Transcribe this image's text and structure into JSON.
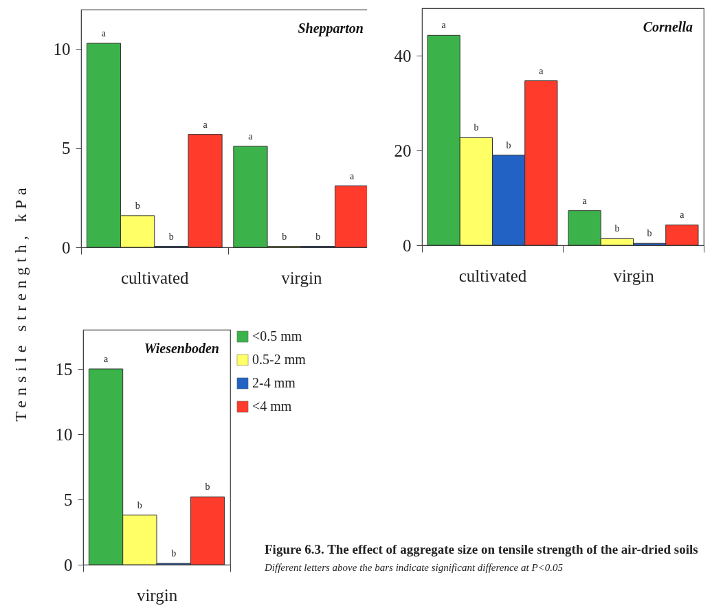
{
  "chart_data": [
    {
      "type": "bar",
      "title": "Shepparton",
      "ylabel": "Tensile strength, kPa",
      "categories": [
        "cultivated",
        "virgin"
      ],
      "ylim": [
        0,
        12
      ],
      "yticks": [
        0,
        5,
        10
      ],
      "series": [
        {
          "color": "#3bb34a",
          "values": [
            10.3,
            5.1
          ],
          "value_labels": [
            "a",
            "a"
          ]
        },
        {
          "color": "#ffff66",
          "values": [
            1.6,
            0.05
          ],
          "value_labels": [
            "b",
            "b"
          ]
        },
        {
          "color": "#2262c4",
          "values": [
            0.05,
            0.05
          ],
          "value_labels": [
            "b",
            "b"
          ]
        },
        {
          "color": "#ff3b2b",
          "values": [
            5.7,
            3.1
          ],
          "value_labels": [
            "a",
            "a"
          ]
        }
      ]
    },
    {
      "type": "bar",
      "title": "Cornella",
      "categories": [
        "cultivated",
        "virgin"
      ],
      "ylim": [
        0,
        50
      ],
      "yticks": [
        0,
        20,
        40
      ],
      "series": [
        {
          "color": "#3bb34a",
          "values": [
            44.3,
            7.3
          ],
          "value_labels": [
            "a",
            "a"
          ]
        },
        {
          "color": "#ffff66",
          "values": [
            22.7,
            1.4
          ],
          "value_labels": [
            "b",
            "b"
          ]
        },
        {
          "color": "#2262c4",
          "values": [
            19.0,
            0.4
          ],
          "value_labels": [
            "b",
            "b"
          ]
        },
        {
          "color": "#ff3b2b",
          "values": [
            34.7,
            4.3
          ],
          "value_labels": [
            "a",
            "a"
          ]
        }
      ]
    },
    {
      "type": "bar",
      "title": "Wiesenboden",
      "categories": [
        "virgin"
      ],
      "ylim": [
        0,
        18
      ],
      "yticks": [
        0,
        5,
        10,
        15
      ],
      "legend": "right",
      "series": [
        {
          "name": "<0.5 mm",
          "color": "#3bb34a",
          "values": [
            15.0
          ],
          "value_labels": [
            "a"
          ]
        },
        {
          "name": "0.5-2 mm",
          "color": "#ffff66",
          "values": [
            3.8
          ],
          "value_labels": [
            "b"
          ]
        },
        {
          "name": "2-4 mm",
          "color": "#2262c4",
          "values": [
            0.1
          ],
          "value_labels": [
            "b"
          ]
        },
        {
          "name": "<4 mm",
          "color": "#ff3b2b",
          "values": [
            5.2
          ],
          "value_labels": [
            "b"
          ]
        }
      ],
      "annotations": [
        "Figure 6.3.  The effect of aggregate size on tensile strength of the air-dried soils",
        "Different letters above the bars indicate significant difference at P<0.05"
      ]
    }
  ]
}
